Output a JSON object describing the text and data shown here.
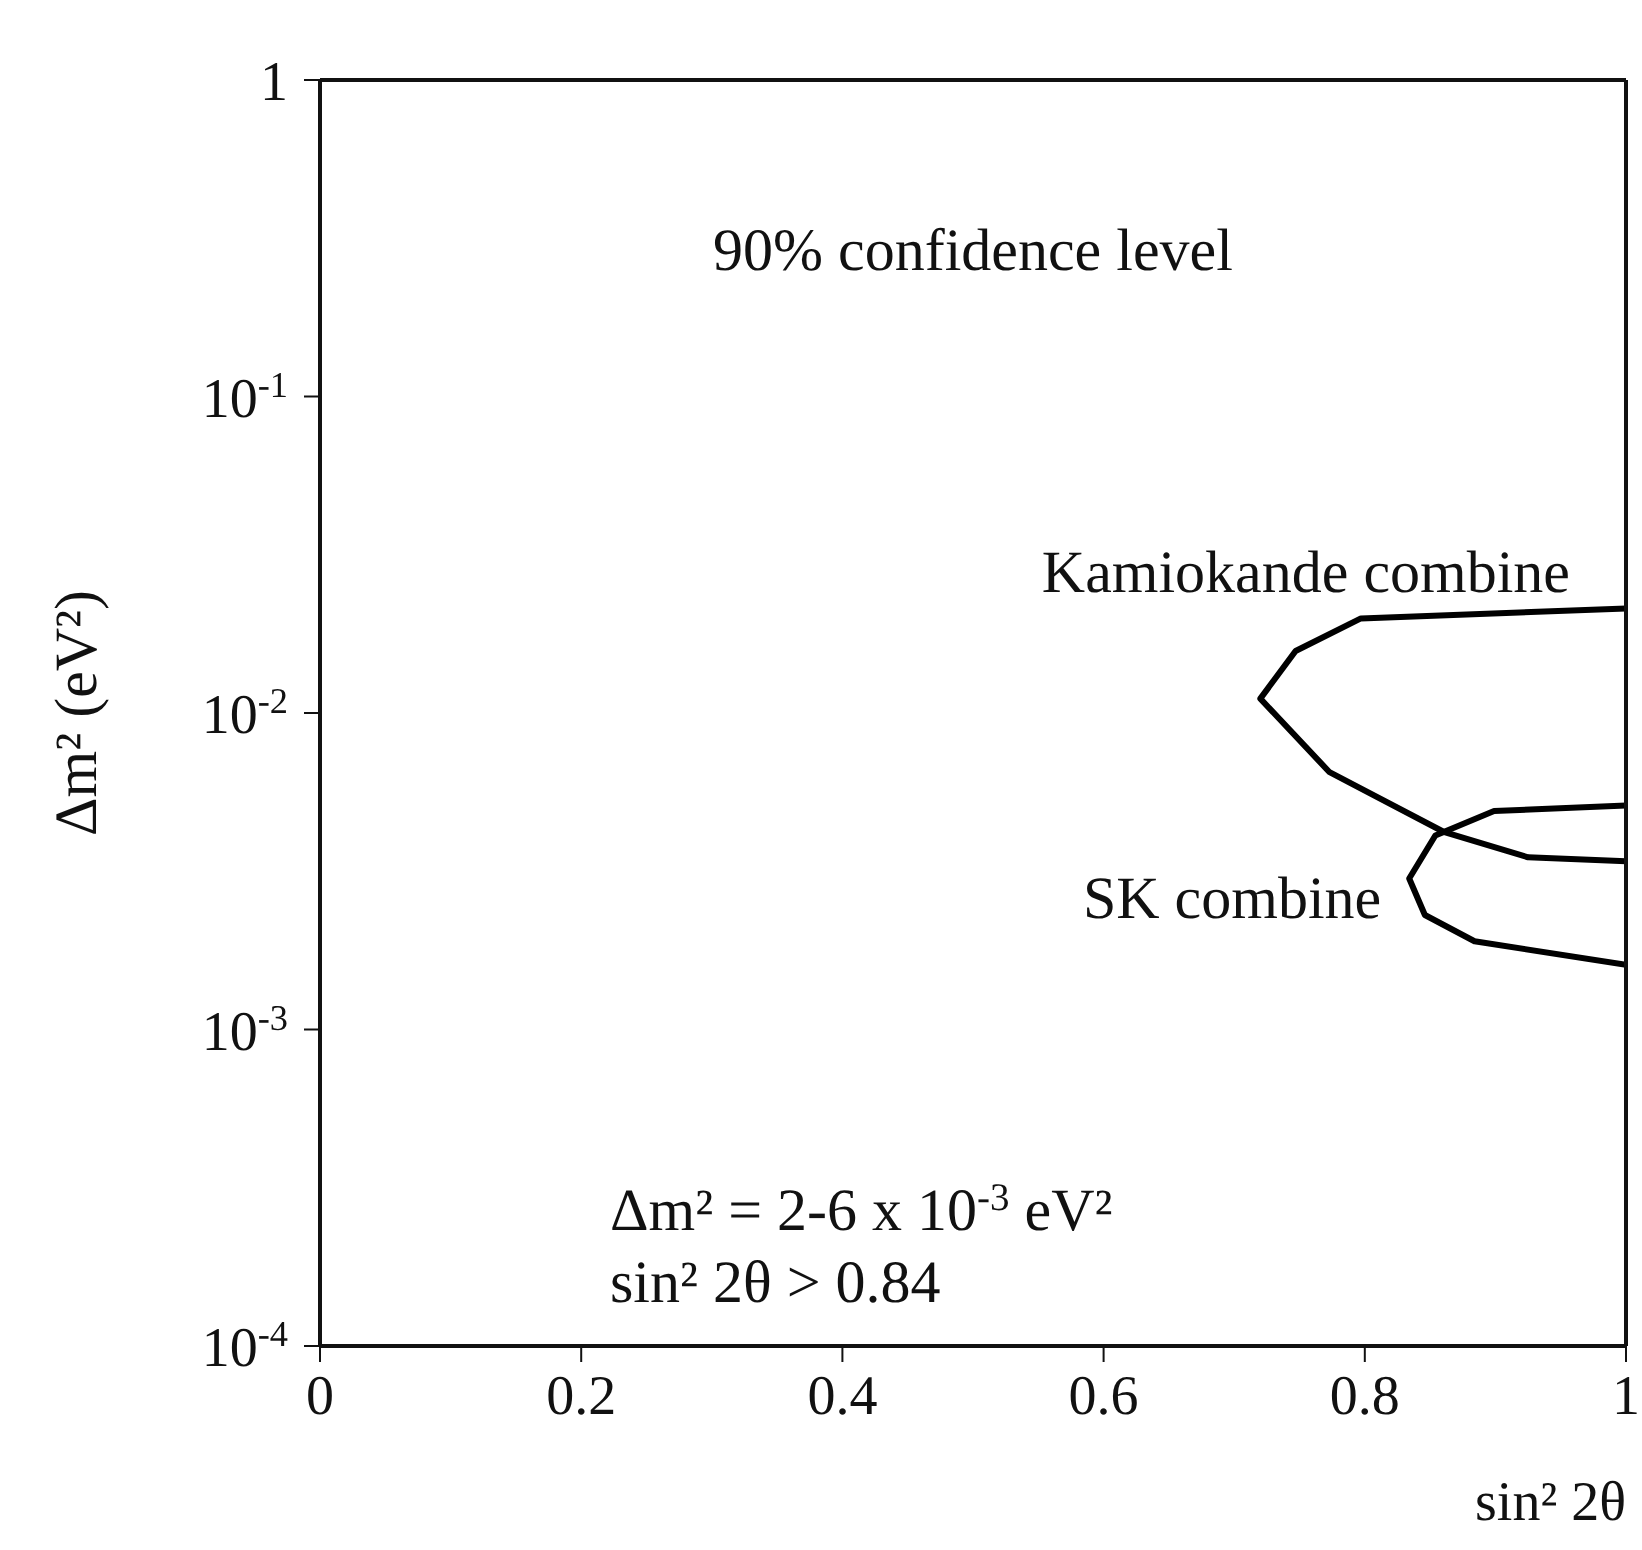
{
  "chart_data": {
    "type": "line",
    "xlabel": "sin² 2θ",
    "ylabel": "Δm² (eV²)",
    "log": "y",
    "xlim": [
      0,
      1
    ],
    "xticks": [
      0,
      0.2,
      0.4,
      0.6,
      0.8,
      1
    ],
    "ylim": [
      0.0001,
      1
    ],
    "yticks": [
      {
        "value": 0.0001,
        "label": "10$^{-4}$"
      },
      {
        "value": 0.001,
        "label": "10$^{-3}$"
      },
      {
        "value": 0.01,
        "label": "10$^{-2}$"
      },
      {
        "value": 0.1,
        "label": "10$^{-1}$"
      },
      {
        "value": 1,
        "label": "1"
      }
    ],
    "line_style": "solid",
    "series": [
      {
        "name": "Kamiokande combine",
        "color": "#000000",
        "x": [
          1.0,
          0.797,
          0.747,
          0.72,
          0.773,
          0.861,
          0.925,
          1.0
        ],
        "values": [
          0.0214,
          0.0199,
          0.0157,
          0.0111,
          0.0065,
          0.0042,
          0.0035,
          0.0034
        ]
      },
      {
        "name": "SK combine",
        "color": "#000000",
        "x": [
          1.0,
          0.899,
          0.854,
          0.834,
          0.846,
          0.884,
          1.0
        ],
        "values": [
          0.0051,
          0.0049,
          0.0041,
          0.003,
          0.0023,
          0.0019,
          0.0016
        ]
      }
    ],
    "annotations": [
      "90% confidence level",
      "Δm² = 2-6 x 10$^{-3}$ eV²",
      "sin² 2θ > 0.84"
    ]
  }
}
